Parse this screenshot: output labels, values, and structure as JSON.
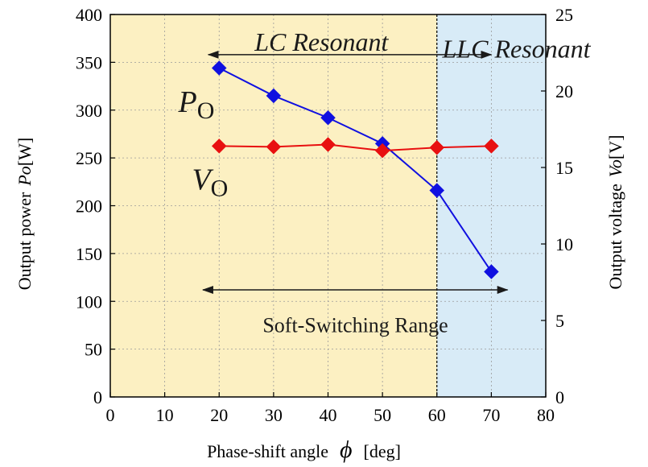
{
  "chart_data": {
    "type": "line",
    "x": [
      20,
      30,
      40,
      50,
      60,
      70
    ],
    "xlim": [
      0,
      80
    ],
    "xticks": [
      "0",
      "10",
      "20",
      "30",
      "40",
      "50",
      "60",
      "70",
      "80"
    ],
    "xlabel": "Phase-shift angle",
    "xlabel_symbol": "ϕ",
    "xlabel_unit": "[deg]",
    "ylabel_left": "Output power",
    "ylabel_left_symbol": "Po",
    "ylabel_left_unit": "[W]",
    "ylim_left": [
      0,
      400
    ],
    "yticks_left": [
      "0",
      "50",
      "100",
      "150",
      "200",
      "250",
      "300",
      "350",
      "400"
    ],
    "ylabel_right": "Output voltage",
    "ylabel_right_symbol": "Vo",
    "ylabel_right_unit": "[V]",
    "ylim_right": [
      0,
      25
    ],
    "yticks_right": [
      "0",
      "5",
      "10",
      "15",
      "20",
      "25"
    ],
    "series": [
      {
        "name": "Po",
        "axis": "left",
        "color": "#1010e0",
        "marker": "diamond",
        "values": [
          344,
          315,
          292,
          265,
          216,
          131
        ]
      },
      {
        "name": "Vo",
        "axis": "right",
        "color": "#e81010",
        "marker": "diamond",
        "values": [
          16.4,
          16.35,
          16.5,
          16.1,
          16.3,
          16.4
        ]
      }
    ],
    "regions": [
      {
        "label": "LC Resonant",
        "x_range": [
          0,
          60
        ],
        "color": "#fcf0c2"
      },
      {
        "label": "LLC Resonant",
        "x_range": [
          60,
          80
        ],
        "color": "#d8ebf7"
      }
    ],
    "annotations": {
      "soft_switching": "Soft-Switching Range",
      "soft_switching_range": [
        17,
        73
      ],
      "divider_x": 60
    },
    "series_labels": {
      "po_main": "P",
      "po_sub": "O",
      "vo_main": "V",
      "vo_sub": "O"
    },
    "grid": true
  }
}
